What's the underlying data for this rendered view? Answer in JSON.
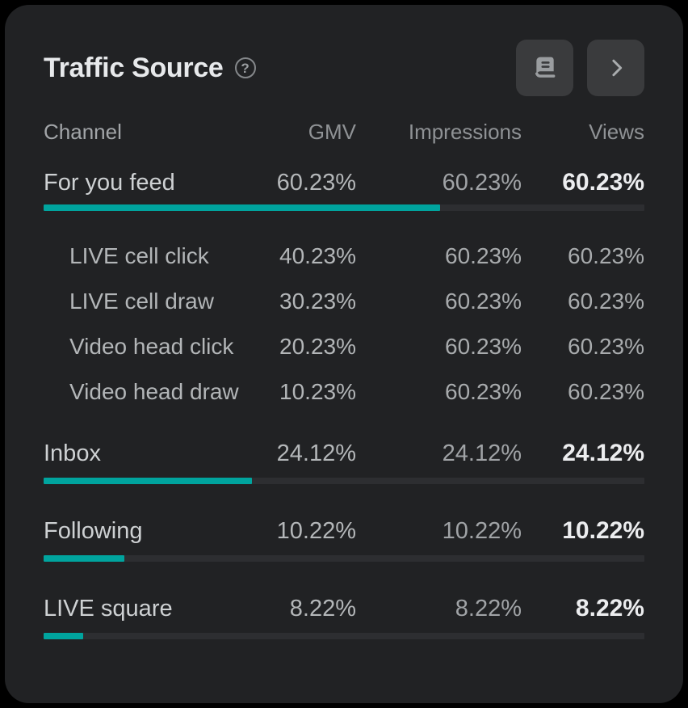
{
  "card": {
    "title": "Traffic Source",
    "help_glyph": "?",
    "actions": {
      "details_icon": "ledger-book",
      "expand_icon": "chevron-right"
    }
  },
  "colors": {
    "accent": "#00a49e",
    "page_bg": "#000000",
    "card_bg": "#212224",
    "bar_track": "#2d2e31"
  },
  "table": {
    "columns": [
      "Channel",
      "GMV",
      "Impressions",
      "Views"
    ],
    "rows": [
      {
        "label": "For you feed",
        "gmv": "60.23%",
        "impressions": "60.23%",
        "views": "60.23%",
        "bar_percent": 66,
        "children": [
          {
            "label": "LIVE cell click",
            "gmv": "40.23%",
            "impressions": "60.23%",
            "views": "60.23%"
          },
          {
            "label": "LIVE cell draw",
            "gmv": "30.23%",
            "impressions": "60.23%",
            "views": "60.23%"
          },
          {
            "label": "Video head click",
            "gmv": "20.23%",
            "impressions": "60.23%",
            "views": "60.23%"
          },
          {
            "label": "Video head draw",
            "gmv": "10.23%",
            "impressions": "60.23%",
            "views": "60.23%"
          }
        ]
      },
      {
        "label": "Inbox",
        "gmv": "24.12%",
        "impressions": "24.12%",
        "views": "24.12%",
        "bar_percent": 34.7
      },
      {
        "label": "Following",
        "gmv": "10.22%",
        "impressions": "10.22%",
        "views": "10.22%",
        "bar_percent": 13.4
      },
      {
        "label": "LIVE square",
        "gmv": "8.22%",
        "impressions": "8.22%",
        "views": "8.22%",
        "bar_percent": 6.6
      }
    ]
  }
}
